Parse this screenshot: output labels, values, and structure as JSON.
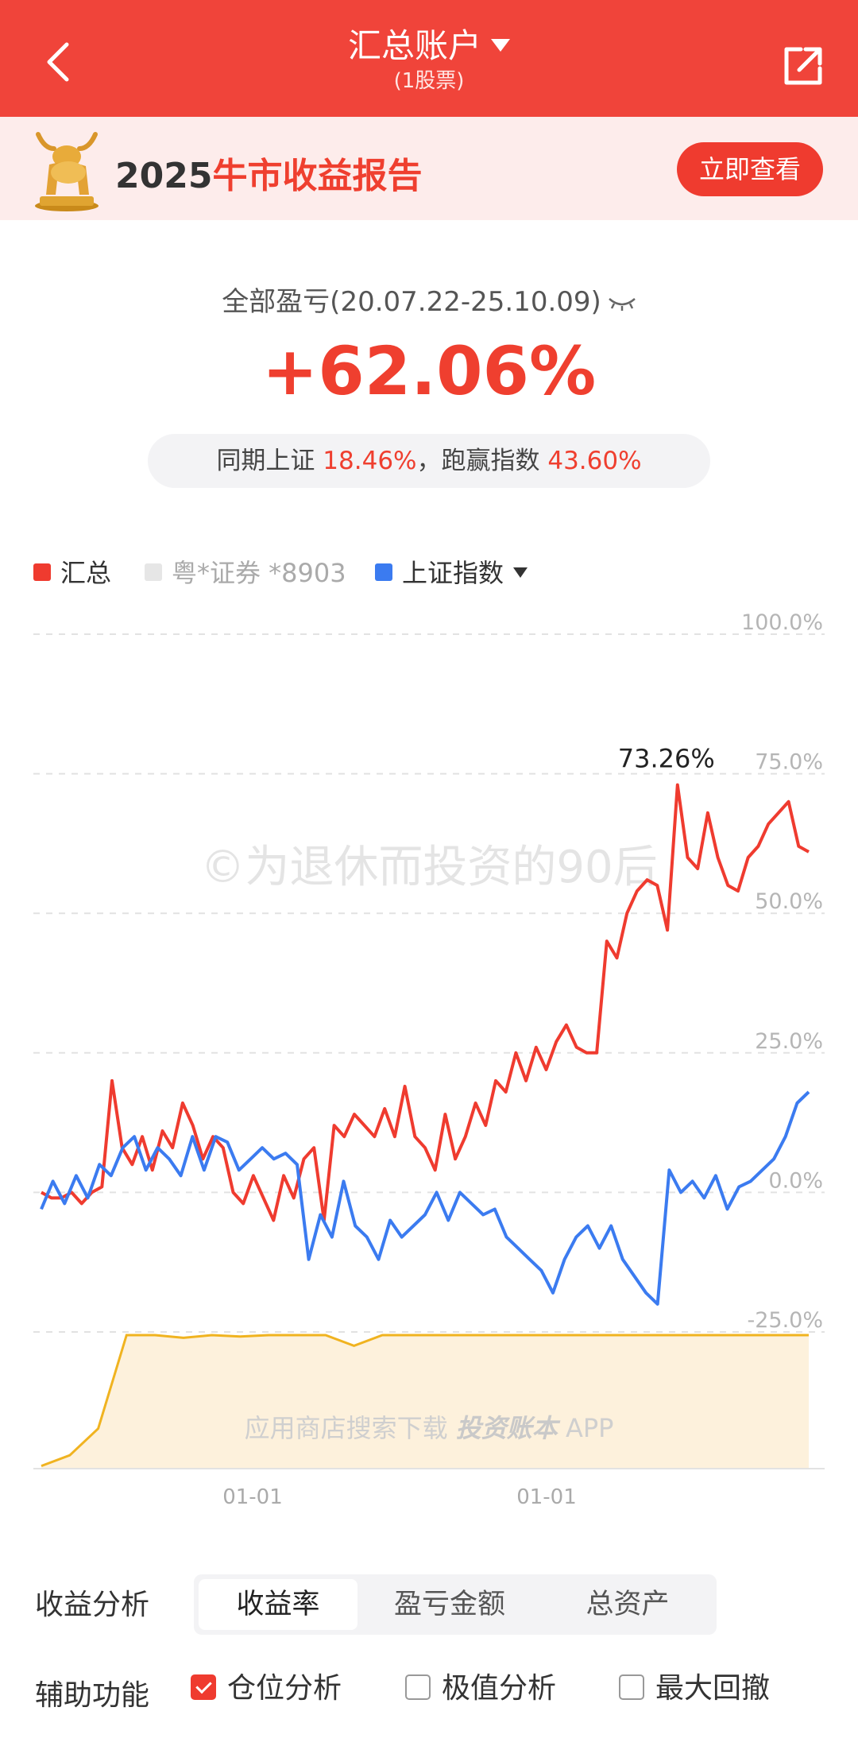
{
  "header": {
    "title": "汇总账户",
    "subtitle": "(1股票)"
  },
  "banner": {
    "year": "2025",
    "text": "牛市收益报告",
    "button": "立即查看"
  },
  "summary": {
    "label": "全部盈亏(20.07.22-25.10.09)",
    "value": "+62.06%",
    "compare_prefix": "同期上证",
    "sh_value": "18.46%",
    "compare_mid": "，跑赢指数",
    "beat_value": "43.60%"
  },
  "legend": [
    {
      "label": "汇总",
      "color": "#ef3b2f"
    },
    {
      "label": "粤*证券 *8903",
      "color": "#e6e6e6"
    },
    {
      "label": "上证指数",
      "color": "#3b7bf0"
    }
  ],
  "watermark": "©为退休而投资的90后",
  "footer_watermark": {
    "prefix": "应用商店搜索下载",
    "app_name": "投资账本",
    "suffix": "APP"
  },
  "chart_data": {
    "type": "line",
    "y_ticks": [
      "100.0%",
      "75.0%",
      "50.0%",
      "25.0%",
      "0.0%",
      "-25.0%"
    ],
    "ylim": [
      -25,
      100
    ],
    "x_ticks": [
      "01-01",
      "01-01"
    ],
    "peak_label": "73.26%",
    "series": [
      {
        "name": "汇总",
        "color": "#ef3b2f",
        "values": [
          0,
          -1,
          -1,
          0,
          -2,
          0,
          1,
          20,
          8,
          5,
          10,
          4,
          11,
          8,
          16,
          12,
          6,
          10,
          8,
          0,
          -2,
          3,
          -1,
          -5,
          3,
          -1,
          6,
          8,
          -5,
          12,
          10,
          14,
          12,
          10,
          15,
          10,
          19,
          10,
          8,
          4,
          14,
          6,
          10,
          16,
          12,
          20,
          18,
          25,
          20,
          26,
          22,
          27,
          30,
          26,
          25,
          25,
          45,
          42,
          50,
          54,
          56,
          55,
          47,
          73,
          60,
          58,
          68,
          60,
          55,
          54,
          60,
          62,
          66,
          68,
          70,
          62,
          61
        ]
      },
      {
        "name": "上证指数",
        "color": "#3b7bf0",
        "values": [
          -3,
          2,
          -2,
          3,
          -1,
          5,
          3,
          8,
          10,
          4,
          8,
          6,
          3,
          10,
          4,
          10,
          9,
          4,
          6,
          8,
          6,
          7,
          5,
          -12,
          -4,
          -8,
          2,
          -6,
          -8,
          -12,
          -5,
          -8,
          -6,
          -4,
          0,
          -5,
          0,
          -2,
          -4,
          -3,
          -8,
          -10,
          -12,
          -14,
          -18,
          -12,
          -8,
          -6,
          -10,
          -6,
          -12,
          -15,
          -18,
          -20,
          4,
          0,
          2,
          -1,
          3,
          -3,
          1,
          2,
          4,
          6,
          10,
          16,
          18
        ]
      }
    ],
    "position_series": {
      "name": "仓位",
      "color": "#f0b320",
      "values": [
        2,
        10,
        30,
        100,
        100,
        98,
        100,
        99,
        100,
        100,
        100,
        92,
        100,
        100,
        100,
        100,
        100,
        100,
        100,
        100,
        100,
        100,
        100,
        100,
        100,
        100,
        100,
        100
      ]
    }
  },
  "analysis": {
    "label": "收益分析",
    "tabs": [
      "收益率",
      "盈亏金额",
      "总资产"
    ],
    "active": 0
  },
  "aux": {
    "label": "辅助功能",
    "options": [
      {
        "label": "仓位分析",
        "checked": true
      },
      {
        "label": "极值分析",
        "checked": false
      },
      {
        "label": "最大回撤",
        "checked": false
      }
    ]
  }
}
